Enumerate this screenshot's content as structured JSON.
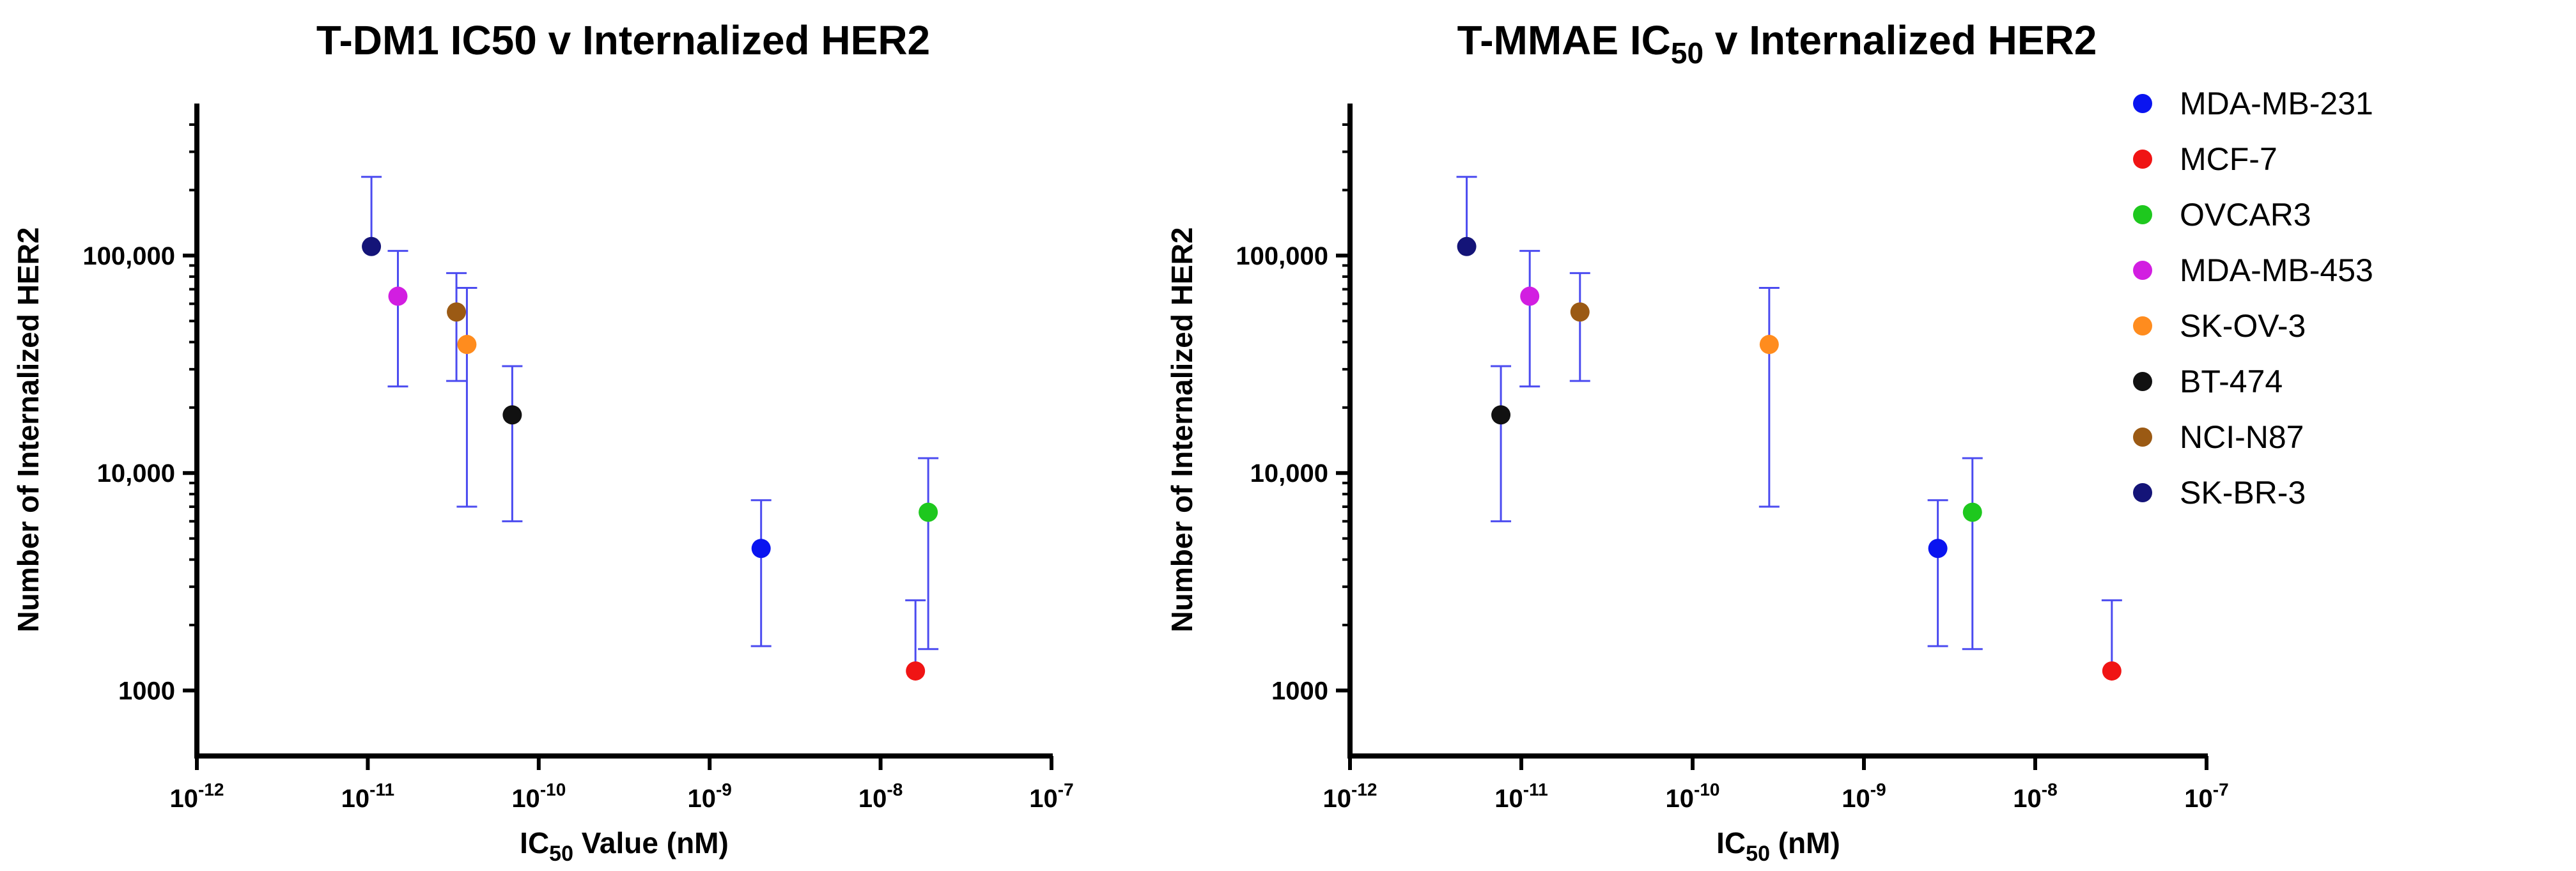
{
  "chart_data": [
    {
      "type": "scatter",
      "title": "T-DM1 IC50 v Internalized HER2",
      "xlabel": {
        "main": "IC",
        "sub": "50",
        "rest": " Value (nM)"
      },
      "ylabel": "Number of Internalized HER2",
      "x_scale": "log",
      "y_scale": "log",
      "xlim": [
        1e-12,
        1e-07
      ],
      "ylim": [
        500,
        500000
      ],
      "x_ticks": [
        {
          "value": 1e-12,
          "base": "10",
          "exp": "-12"
        },
        {
          "value": 1e-11,
          "base": "10",
          "exp": "-11"
        },
        {
          "value": 1e-10,
          "base": "10",
          "exp": "-10"
        },
        {
          "value": 1e-09,
          "base": "10",
          "exp": "-9"
        },
        {
          "value": 1e-08,
          "base": "10",
          "exp": "-8"
        },
        {
          "value": 1e-07,
          "base": "10",
          "exp": "-7"
        }
      ],
      "y_ticks": [
        {
          "value": 1000,
          "label": "1000"
        },
        {
          "value": 10000,
          "label": "10,000"
        },
        {
          "value": 100000,
          "label": "100,000"
        }
      ],
      "series": [
        {
          "name": "SK-BR-3",
          "x": 1.05e-11,
          "y": 110000,
          "err_low": null,
          "err_high": 230000
        },
        {
          "name": "MDA-MB-453",
          "x": 1.5e-11,
          "y": 65000,
          "err_low": 25000,
          "err_high": 105000
        },
        {
          "name": "NCI-N87",
          "x": 3.3e-11,
          "y": 55000,
          "err_low": 26500,
          "err_high": 83000
        },
        {
          "name": "SK-OV-3",
          "x": 3.8e-11,
          "y": 39000,
          "err_low": 7000,
          "err_high": 71000
        },
        {
          "name": "BT-474",
          "x": 7e-11,
          "y": 18500,
          "err_low": 6000,
          "err_high": 31000
        },
        {
          "name": "MDA-MB-231",
          "x": 2e-09,
          "y": 4500,
          "err_low": 1600,
          "err_high": 7500
        },
        {
          "name": "OVCAR3",
          "x": 1.9e-08,
          "y": 6600,
          "err_low": 1550,
          "err_high": 11700
        },
        {
          "name": "MCF-7",
          "x": 1.6e-08,
          "y": 1230,
          "err_low": null,
          "err_high": 2600
        }
      ]
    },
    {
      "type": "scatter",
      "title": {
        "main": "T-MMAE IC",
        "sub": "50",
        "rest": " v Internalized HER2"
      },
      "xlabel": {
        "main": "IC",
        "sub": "50",
        "rest": " (nM)"
      },
      "ylabel": "Number of Internalized HER2",
      "x_scale": "log",
      "y_scale": "log",
      "xlim": [
        1e-12,
        1e-07
      ],
      "ylim": [
        500,
        500000
      ],
      "x_ticks": [
        {
          "value": 1e-12,
          "base": "10",
          "exp": "-12"
        },
        {
          "value": 1e-11,
          "base": "10",
          "exp": "-11"
        },
        {
          "value": 1e-10,
          "base": "10",
          "exp": "-10"
        },
        {
          "value": 1e-09,
          "base": "10",
          "exp": "-9"
        },
        {
          "value": 1e-08,
          "base": "10",
          "exp": "-8"
        },
        {
          "value": 1e-07,
          "base": "10",
          "exp": "-7"
        }
      ],
      "y_ticks": [
        {
          "value": 1000,
          "label": "1000"
        },
        {
          "value": 10000,
          "label": "10,000"
        },
        {
          "value": 100000,
          "label": "100,000"
        }
      ],
      "series": [
        {
          "name": "SK-BR-3",
          "x": 4.8e-12,
          "y": 110000,
          "err_low": null,
          "err_high": 230000
        },
        {
          "name": "BT-474",
          "x": 7.6e-12,
          "y": 18500,
          "err_low": 6000,
          "err_high": 31000
        },
        {
          "name": "MDA-MB-453",
          "x": 1.12e-11,
          "y": 65000,
          "err_low": 25000,
          "err_high": 105000
        },
        {
          "name": "NCI-N87",
          "x": 2.2e-11,
          "y": 55000,
          "err_low": 26500,
          "err_high": 83000
        },
        {
          "name": "SK-OV-3",
          "x": 2.8e-10,
          "y": 39000,
          "err_low": 7000,
          "err_high": 71000
        },
        {
          "name": "MDA-MB-231",
          "x": 2.7e-09,
          "y": 4500,
          "err_low": 1600,
          "err_high": 7500
        },
        {
          "name": "OVCAR3",
          "x": 4.3e-09,
          "y": 6600,
          "err_low": 1550,
          "err_high": 11700
        },
        {
          "name": "MCF-7",
          "x": 2.8e-08,
          "y": 1230,
          "err_low": null,
          "err_high": 2600
        }
      ]
    }
  ],
  "legend": [
    {
      "name": "MDA-MB-231",
      "color": "#0a14f0"
    },
    {
      "name": "MCF-7",
      "color": "#f01414"
    },
    {
      "name": "OVCAR3",
      "color": "#1ec81e"
    },
    {
      "name": "MDA-MB-453",
      "color": "#d21ee1"
    },
    {
      "name": "SK-OV-3",
      "color": "#ff8c1e"
    },
    {
      "name": "BT-474",
      "color": "#111111"
    },
    {
      "name": "NCI-N87",
      "color": "#9b5a14"
    },
    {
      "name": "SK-BR-3",
      "color": "#141478"
    }
  ],
  "colors": {
    "error_bar": "#4b4bf0",
    "axis": "#000000"
  }
}
